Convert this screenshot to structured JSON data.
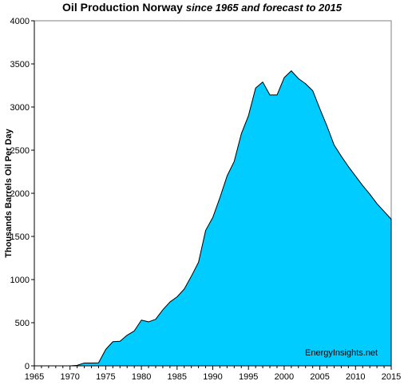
{
  "chart_data": {
    "type": "area",
    "title": "Oil Production Norway",
    "subtitle": "since 1965 and forecast to 2015",
    "xlabel": "",
    "ylabel": "Thousands Barrels Oil Per Day",
    "xlim": [
      1965,
      2015
    ],
    "ylim": [
      0,
      4000
    ],
    "x_ticks": [
      1965,
      1970,
      1975,
      1980,
      1985,
      1990,
      1995,
      2000,
      2005,
      2010,
      2015
    ],
    "y_ticks": [
      0,
      500,
      1000,
      1500,
      2000,
      2500,
      3000,
      3500,
      4000
    ],
    "grid": false,
    "legend": "none",
    "fill_color": "#00ccff",
    "annotation": "EnergyInsights.net",
    "x": [
      1965,
      1966,
      1967,
      1968,
      1969,
      1970,
      1971,
      1972,
      1973,
      1974,
      1975,
      1976,
      1977,
      1978,
      1979,
      1980,
      1981,
      1982,
      1983,
      1984,
      1985,
      1986,
      1987,
      1988,
      1989,
      1990,
      1991,
      1992,
      1993,
      1994,
      1995,
      1996,
      1997,
      1998,
      1999,
      2000,
      2001,
      2002,
      2003,
      2004,
      2005,
      2006,
      2007,
      2008,
      2009,
      2010,
      2011,
      2012,
      2013,
      2014,
      2015
    ],
    "values": [
      0,
      0,
      0,
      0,
      0,
      0,
      6,
      33,
      32,
      35,
      190,
      280,
      285,
      355,
      405,
      530,
      510,
      540,
      650,
      740,
      800,
      890,
      1040,
      1200,
      1570,
      1720,
      1950,
      2200,
      2370,
      2690,
      2900,
      3220,
      3290,
      3140,
      3140,
      3340,
      3420,
      3330,
      3270,
      3190,
      2980,
      2780,
      2560,
      2430,
      2310,
      2200,
      2090,
      1990,
      1880,
      1790,
      1700
    ]
  }
}
